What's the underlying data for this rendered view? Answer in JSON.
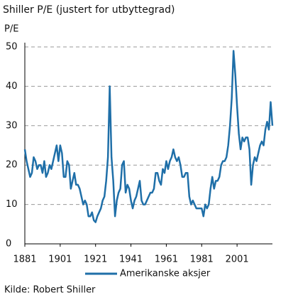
{
  "chart_data": {
    "type": "line",
    "title": "Shiller P/E (justert for utbyttegrad)",
    "y_label": "P/E",
    "source": "Kilde: Robert Shiller",
    "x": [
      1881,
      1882,
      1883,
      1884,
      1885,
      1886,
      1887,
      1888,
      1889,
      1890,
      1891,
      1892,
      1893,
      1894,
      1895,
      1896,
      1897,
      1898,
      1899,
      1900,
      1901,
      1902,
      1903,
      1904,
      1905,
      1906,
      1907,
      1908,
      1909,
      1910,
      1911,
      1912,
      1913,
      1914,
      1915,
      1916,
      1917,
      1918,
      1919,
      1920,
      1921,
      1922,
      1923,
      1924,
      1925,
      1926,
      1927,
      1928,
      1929,
      1930,
      1931,
      1932,
      1933,
      1934,
      1935,
      1936,
      1937,
      1938,
      1939,
      1940,
      1941,
      1942,
      1943,
      1944,
      1945,
      1946,
      1947,
      1948,
      1949,
      1950,
      1951,
      1952,
      1953,
      1954,
      1955,
      1956,
      1957,
      1958,
      1959,
      1960,
      1961,
      1962,
      1963,
      1964,
      1965,
      1966,
      1967,
      1968,
      1969,
      1970,
      1971,
      1972,
      1973,
      1974,
      1975,
      1976,
      1977,
      1978,
      1979,
      1980,
      1981,
      1982,
      1983,
      1984,
      1985,
      1986,
      1987,
      1988,
      1989,
      1990,
      1991,
      1992,
      1993,
      1994,
      1995,
      1996,
      1997,
      1998,
      1999,
      2000,
      2001,
      2002,
      2003,
      2004,
      2005,
      2006,
      2007,
      2008,
      2009,
      2010,
      2011,
      2012,
      2013,
      2014,
      2015,
      2016,
      2017,
      2018,
      2019,
      2020,
      2021
    ],
    "series": [
      {
        "name": "Amerikanske aksjer",
        "color": "#1f6fa8",
        "values": [
          24,
          21,
          19,
          17,
          18,
          22,
          21,
          19,
          20,
          20,
          18,
          21,
          17,
          18,
          20,
          19,
          21,
          23,
          25,
          21,
          25,
          23,
          17,
          17,
          21,
          20,
          14,
          16,
          18,
          15,
          15,
          14,
          12,
          10,
          11,
          10,
          7,
          7,
          8,
          6,
          5.5,
          7,
          8,
          9,
          11,
          12,
          16,
          22,
          40,
          22,
          16,
          7,
          11,
          13,
          14,
          20,
          21,
          13,
          15,
          14,
          11,
          9,
          11,
          12,
          14,
          16,
          11,
          10,
          10,
          11,
          12,
          13,
          13,
          14,
          18,
          18,
          16,
          15,
          19,
          18,
          21,
          19,
          21,
          22,
          24,
          22,
          21,
          22,
          20,
          17,
          17,
          18,
          18,
          12,
          10,
          11,
          10,
          9,
          9,
          9,
          9,
          7,
          10,
          9,
          10,
          14,
          17,
          14,
          16,
          16,
          17,
          20,
          21,
          21,
          22,
          25,
          30,
          37,
          49,
          43,
          35,
          28,
          24,
          27,
          26,
          27,
          27,
          24,
          15,
          20,
          22,
          21,
          23,
          25,
          26,
          25,
          29,
          31,
          29,
          36,
          30
        ]
      }
    ],
    "xlim": [
      1881,
      2021
    ],
    "xticks": [
      1881,
      1901,
      1921,
      1941,
      1961,
      1981,
      2001
    ],
    "ylim": [
      0,
      50
    ],
    "yticks": [
      0,
      10,
      20,
      30,
      40,
      50
    ],
    "grid": true
  }
}
